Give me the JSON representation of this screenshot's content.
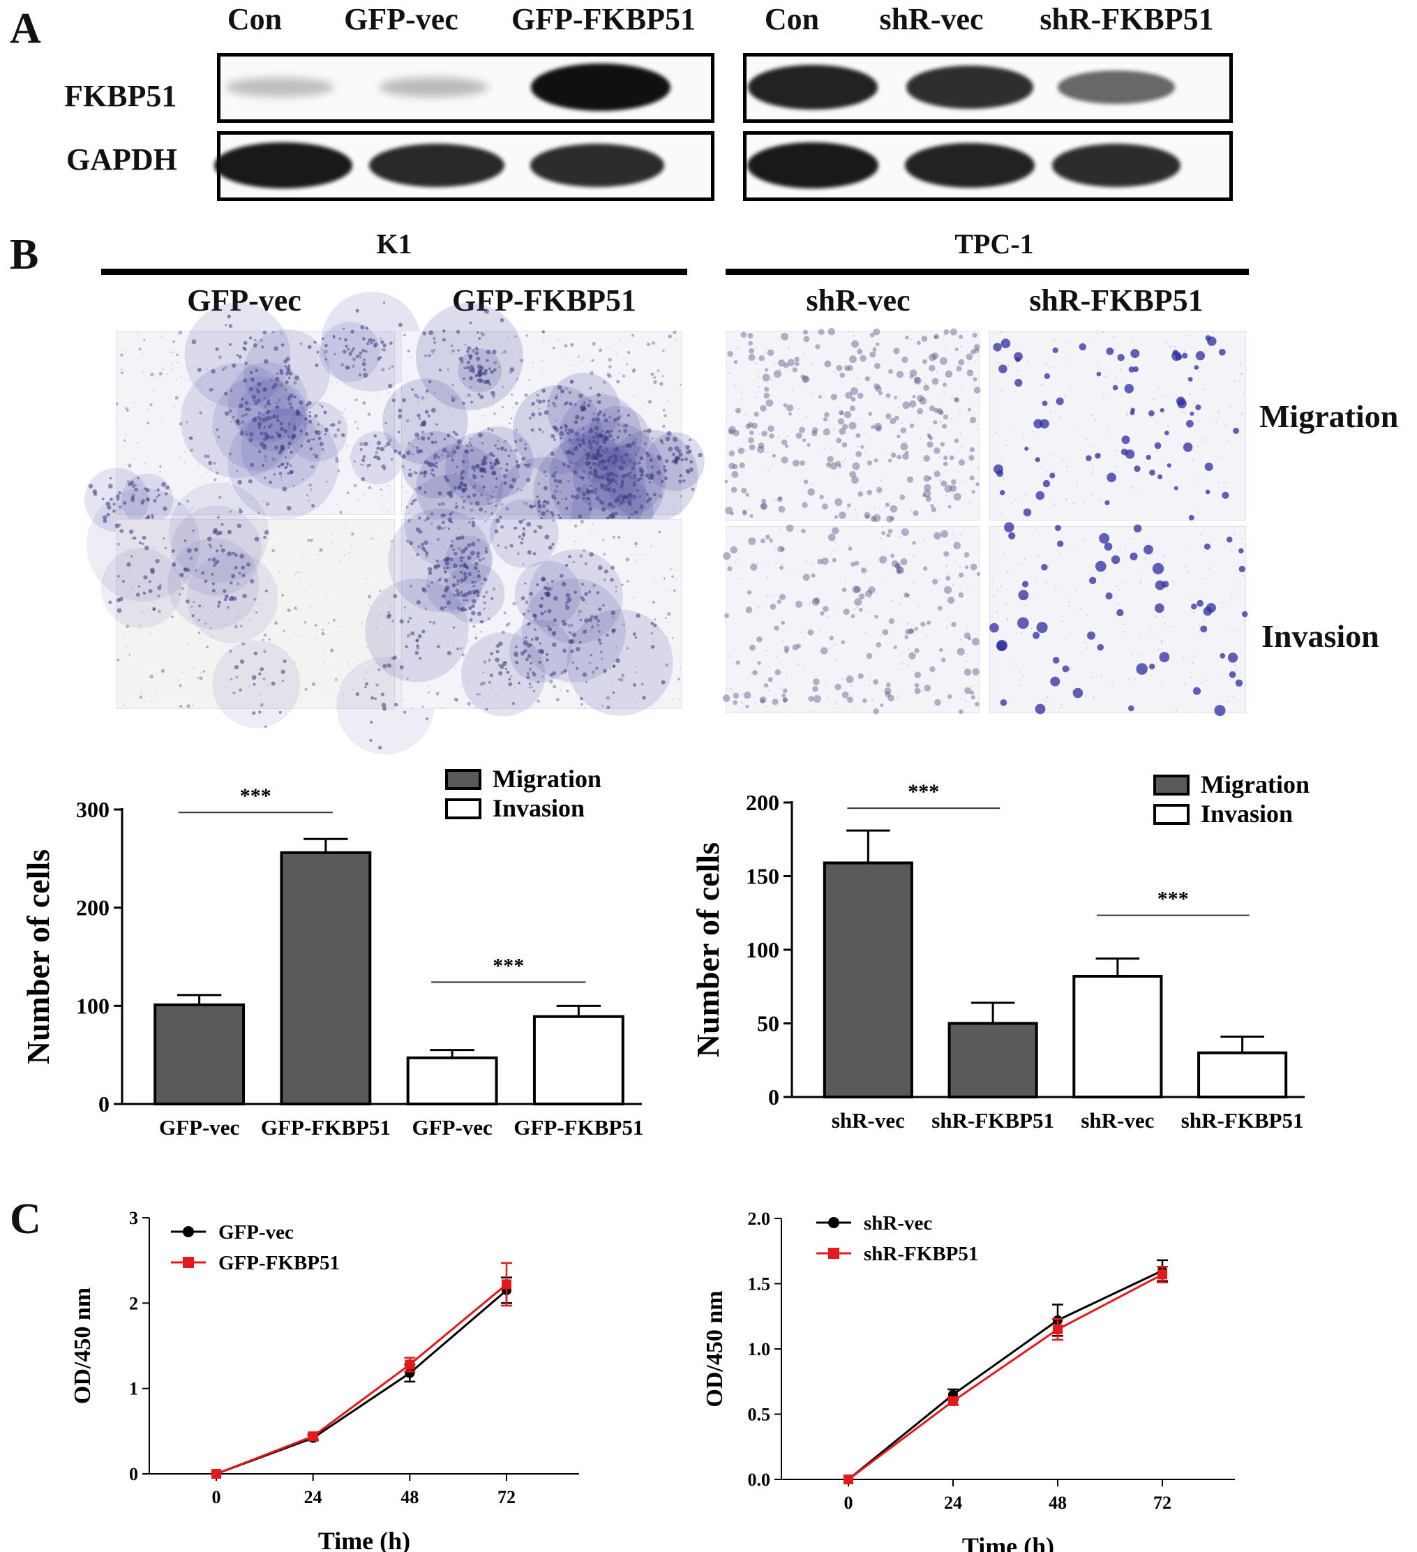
{
  "panels": {
    "A": "A",
    "B": "B",
    "C": "C"
  },
  "western": {
    "left_lanes": [
      "Con",
      "GFP-vec",
      "GFP-FKBP51"
    ],
    "right_lanes": [
      "Con",
      "shR-vec",
      "shR-FKBP51"
    ],
    "proteins": [
      "FKBP51",
      "GAPDH"
    ],
    "fkbp51_intensity_left": [
      0.12,
      0.14,
      1.0
    ],
    "fkbp51_intensity_right": [
      0.9,
      0.85,
      0.55
    ],
    "gapdh_intensity": 0.95,
    "band_color": "#101010"
  },
  "microscopy": {
    "cell_lines": [
      "K1",
      "TPC-1"
    ],
    "k1_groups": [
      "GFP-vec",
      "GFP-FKBP51"
    ],
    "tpc1_groups": [
      "shR-vec",
      "shR-FKBP51"
    ],
    "row_labels": [
      "Migration",
      "Invasion"
    ],
    "stain_color": "#4a4aa0"
  },
  "chart_data": [
    {
      "type": "bar",
      "panel": "B",
      "categories": [
        "GFP-vec",
        "GFP-FKBP51",
        "GFP-vec",
        "GFP-FKBP51"
      ],
      "series": [
        {
          "name": "Migration",
          "values": [
            101,
            256,
            null,
            null
          ],
          "errors": [
            10,
            14,
            null,
            null
          ],
          "color": "#5a5a5a"
        },
        {
          "name": "Invasion",
          "values": [
            null,
            null,
            47,
            89
          ],
          "errors": [
            null,
            null,
            8,
            11
          ],
          "color": "#ffffff"
        }
      ],
      "ylabel": "Number of cells",
      "ylim": [
        0,
        300
      ],
      "yticks": [
        "0",
        "100",
        "200",
        "300"
      ],
      "significance": [
        {
          "text": "***",
          "between": [
            0,
            1
          ]
        },
        {
          "text": "***",
          "between": [
            2,
            3
          ]
        }
      ],
      "legend": "top-right"
    },
    {
      "type": "bar",
      "panel": "B",
      "categories": [
        "shR-vec",
        "shR-FKBP51",
        "shR-vec",
        "shR-FKBP51"
      ],
      "series": [
        {
          "name": "Migration",
          "values": [
            159,
            50,
            null,
            null
          ],
          "errors": [
            22,
            14,
            null,
            null
          ],
          "color": "#5a5a5a"
        },
        {
          "name": "Invasion",
          "values": [
            null,
            null,
            82,
            30
          ],
          "errors": [
            null,
            null,
            12,
            11
          ],
          "color": "#ffffff"
        }
      ],
      "ylabel": "Number of cells",
      "ylim": [
        0,
        200
      ],
      "yticks": [
        "0",
        "50",
        "100",
        "150",
        "200"
      ],
      "significance": [
        {
          "text": "***",
          "between": [
            0,
            1
          ]
        },
        {
          "text": "***",
          "between": [
            2,
            3
          ]
        }
      ],
      "legend": "top-right"
    },
    {
      "type": "line",
      "panel": "C",
      "x": [
        0,
        24,
        48,
        72
      ],
      "xticks": [
        "0",
        "24",
        "48",
        "72"
      ],
      "series": [
        {
          "name": "GFP-vec",
          "values": [
            0,
            0.42,
            1.18,
            2.15
          ],
          "errors": [
            0,
            0.03,
            0.1,
            0.15
          ],
          "color": "#000000",
          "marker": "circle"
        },
        {
          "name": "GFP-FKBP51",
          "values": [
            0,
            0.44,
            1.28,
            2.22
          ],
          "errors": [
            0,
            0.03,
            0.08,
            0.25
          ],
          "color": "#e31a1c",
          "marker": "square"
        }
      ],
      "xlabel": "Time (h)",
      "ylabel": "OD/450 nm",
      "ylim": [
        0,
        3
      ],
      "yticks": [
        "0",
        "1",
        "2",
        "3"
      ],
      "legend": "top-left"
    },
    {
      "type": "line",
      "panel": "C",
      "x": [
        0,
        24,
        48,
        72
      ],
      "xticks": [
        "0",
        "24",
        "48",
        "72"
      ],
      "series": [
        {
          "name": "shR-vec",
          "values": [
            0,
            0.65,
            1.22,
            1.6
          ],
          "errors": [
            0,
            0.04,
            0.12,
            0.08
          ],
          "color": "#000000",
          "marker": "circle"
        },
        {
          "name": "shR-FKBP51",
          "values": [
            0,
            0.6,
            1.15,
            1.57
          ],
          "errors": [
            0,
            0.03,
            0.08,
            0.06
          ],
          "color": "#e31a1c",
          "marker": "square"
        }
      ],
      "xlabel": "Time (h)",
      "ylabel": "OD/450 nm",
      "ylim": [
        0,
        2
      ],
      "yticks": [
        "0.0",
        "0.5",
        "1.0",
        "1.5",
        "2.0"
      ],
      "legend": "top-left"
    }
  ]
}
